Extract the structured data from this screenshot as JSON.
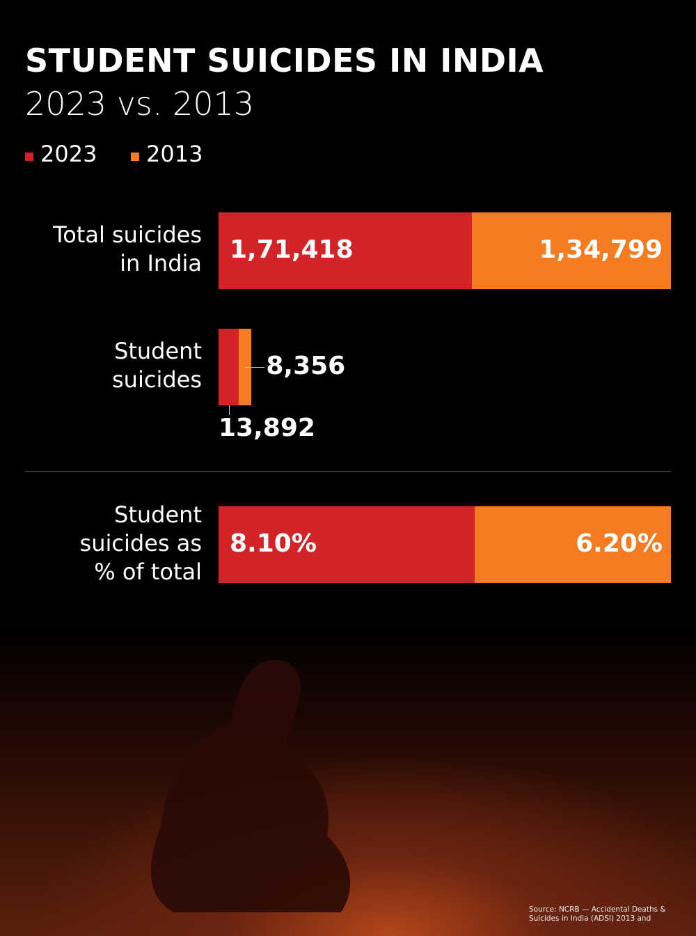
{
  "chart_data": [
    {
      "type": "bar",
      "orientation": "horizontal",
      "stacking": "normal",
      "title": "STUDENT SUICIDES IN INDIA",
      "subtitle": "2023 vs. 2013",
      "categories": [
        "Total suicides in India",
        "Student suicides"
      ],
      "series": [
        {
          "name": "2023",
          "color": "#d42229",
          "values": [
            171418,
            13892
          ],
          "value_labels": [
            "1,71,418",
            "13,892"
          ]
        },
        {
          "name": "2013",
          "color": "#f47b20",
          "values": [
            134799,
            8356
          ],
          "value_labels": [
            "1,34,799",
            "8,356"
          ]
        }
      ],
      "legend": "top-left"
    },
    {
      "type": "bar",
      "orientation": "horizontal",
      "stacking": "percent",
      "categories": [
        "Student suicides as % of total"
      ],
      "series": [
        {
          "name": "2023",
          "color": "#d42229",
          "values": [
            8.1
          ],
          "value_labels": [
            "8.10%"
          ]
        },
        {
          "name": "2013",
          "color": "#f47b20",
          "values": [
            6.2
          ],
          "value_labels": [
            "6.20%"
          ]
        }
      ]
    }
  ],
  "source": "Source: NCRB — Accidental Deaths & Suicides in India (ADSI) 2013 and"
}
